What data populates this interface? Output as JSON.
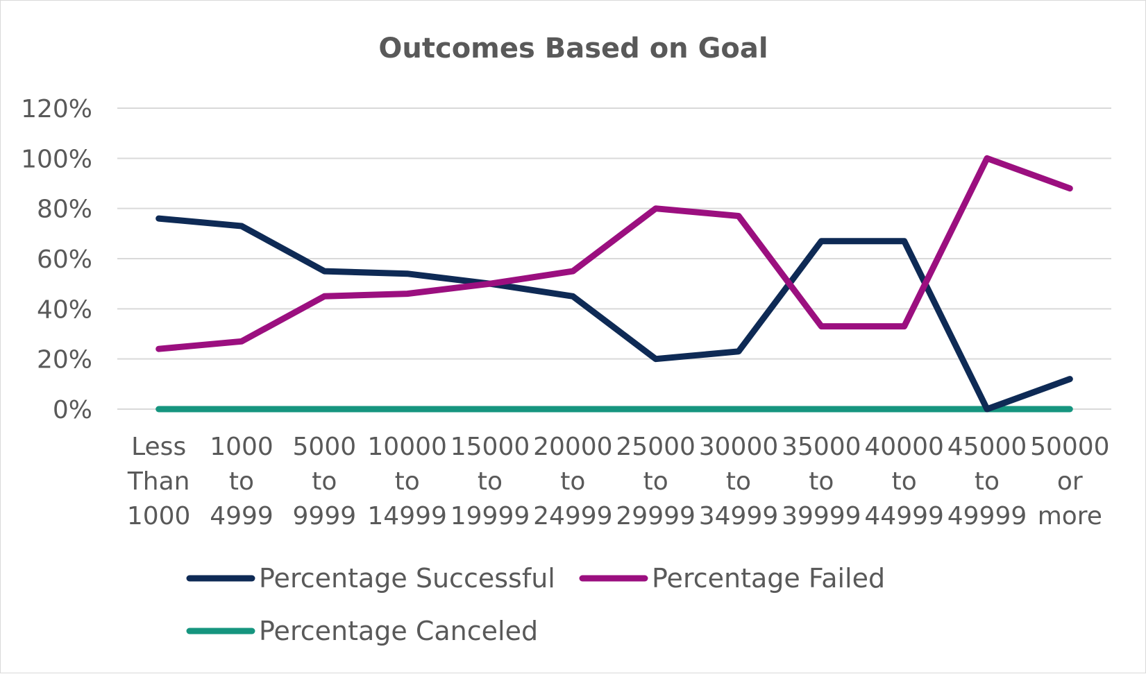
{
  "chart_data": {
    "type": "line",
    "title": "Outcomes Based on Goal",
    "xlabel": "",
    "ylabel": "",
    "ylim": [
      0,
      1.2
    ],
    "yticks": [
      "0%",
      "20%",
      "40%",
      "60%",
      "80%",
      "100%",
      "120%"
    ],
    "grid": true,
    "legend_position": "bottom",
    "categories": [
      [
        "Less",
        "Than",
        "1000"
      ],
      [
        "1000",
        "to",
        "4999"
      ],
      [
        "5000",
        "to",
        "9999"
      ],
      [
        "10000",
        "to",
        "14999"
      ],
      [
        "15000",
        "to",
        "19999"
      ],
      [
        "20000",
        "to",
        "24999"
      ],
      [
        "25000",
        "to",
        "29999"
      ],
      [
        "30000",
        "to",
        "34999"
      ],
      [
        "35000",
        "to",
        "39999"
      ],
      [
        "40000",
        "to",
        "44999"
      ],
      [
        "45000",
        "to",
        "49999"
      ],
      [
        "50000",
        "or",
        "more"
      ]
    ],
    "series": [
      {
        "name": "Percentage Successful",
        "color": "#0e2a55",
        "values": [
          0.76,
          0.73,
          0.55,
          0.54,
          0.5,
          0.45,
          0.2,
          0.23,
          0.67,
          0.67,
          0.0,
          0.12
        ]
      },
      {
        "name": "Percentage Failed",
        "color": "#9b0f7f",
        "values": [
          0.24,
          0.27,
          0.45,
          0.46,
          0.5,
          0.55,
          0.8,
          0.77,
          0.33,
          0.33,
          1.0,
          0.88
        ]
      },
      {
        "name": "Percentage Canceled",
        "color": "#16957f",
        "values": [
          0,
          0,
          0,
          0,
          0,
          0,
          0,
          0,
          0,
          0,
          0,
          0
        ]
      }
    ]
  }
}
